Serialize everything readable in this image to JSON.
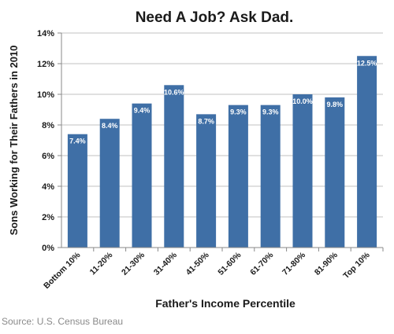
{
  "chart_data": {
    "type": "bar",
    "title": "Need A Job? Ask Dad.",
    "xlabel": "Father's Income Percentile",
    "ylabel": "Sons Working for Their Fathers in 2010",
    "categories": [
      "Bottom 10%",
      "11-20%",
      "21-30%",
      "31-40%",
      "41-50%",
      "51-60%",
      "61-70%",
      "71-80%",
      "81-90%",
      "Top 10%"
    ],
    "values": [
      7.4,
      8.4,
      9.4,
      10.6,
      8.7,
      9.3,
      9.3,
      10.0,
      9.8,
      12.5
    ],
    "data_labels": [
      "7.4%",
      "8.4%",
      "9.4%",
      "10.6%",
      "8.7%",
      "9.3%",
      "9.3%",
      "10.0%",
      "9.8%",
      "12.5%"
    ],
    "yticks": [
      0,
      2,
      4,
      6,
      8,
      10,
      12,
      14
    ],
    "ytick_labels": [
      "0%",
      "2%",
      "4%",
      "6%",
      "8%",
      "10%",
      "12%",
      "14%"
    ],
    "ylim": [
      0,
      14
    ],
    "grid": true,
    "bar_color": "#3f6fa6",
    "grid_color": "#c0c0c0"
  },
  "source": "Source: U.S. Census Bureau"
}
